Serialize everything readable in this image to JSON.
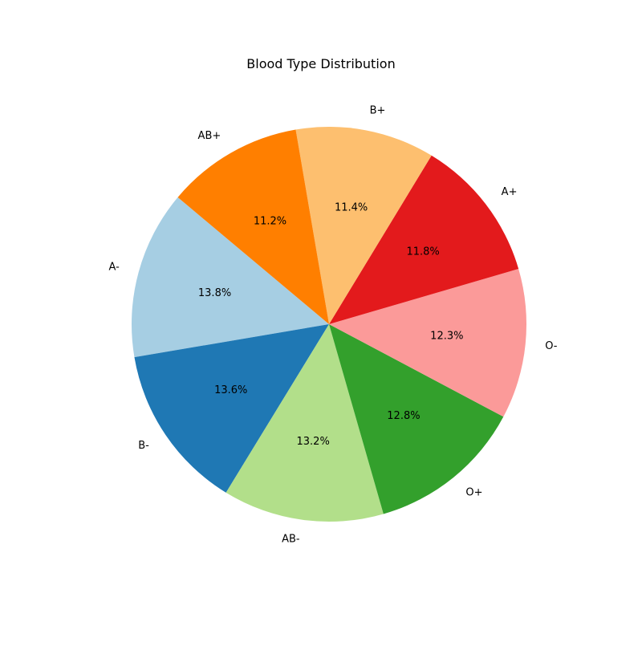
{
  "chart_data": {
    "type": "pie",
    "title": "Blood Type Distribution",
    "slices": [
      {
        "label": "A-",
        "value": 13.8,
        "pct_label": "13.8%",
        "color": "#a6cee3"
      },
      {
        "label": "B-",
        "value": 13.6,
        "pct_label": "13.6%",
        "color": "#1f78b4"
      },
      {
        "label": "AB-",
        "value": 13.2,
        "pct_label": "13.2%",
        "color": "#b2df8a"
      },
      {
        "label": "O+",
        "value": 12.8,
        "pct_label": "12.8%",
        "color": "#33a02c"
      },
      {
        "label": "O-",
        "value": 12.3,
        "pct_label": "12.3%",
        "color": "#fb9a99"
      },
      {
        "label": "A+",
        "value": 11.8,
        "pct_label": "11.8%",
        "color": "#e31a1c"
      },
      {
        "label": "B+",
        "value": 11.4,
        "pct_label": "11.4%",
        "color": "#fdbf6f"
      },
      {
        "label": "AB+",
        "value": 11.2,
        "pct_label": "11.2%",
        "color": "#ff7f00"
      }
    ],
    "legend": false
  }
}
